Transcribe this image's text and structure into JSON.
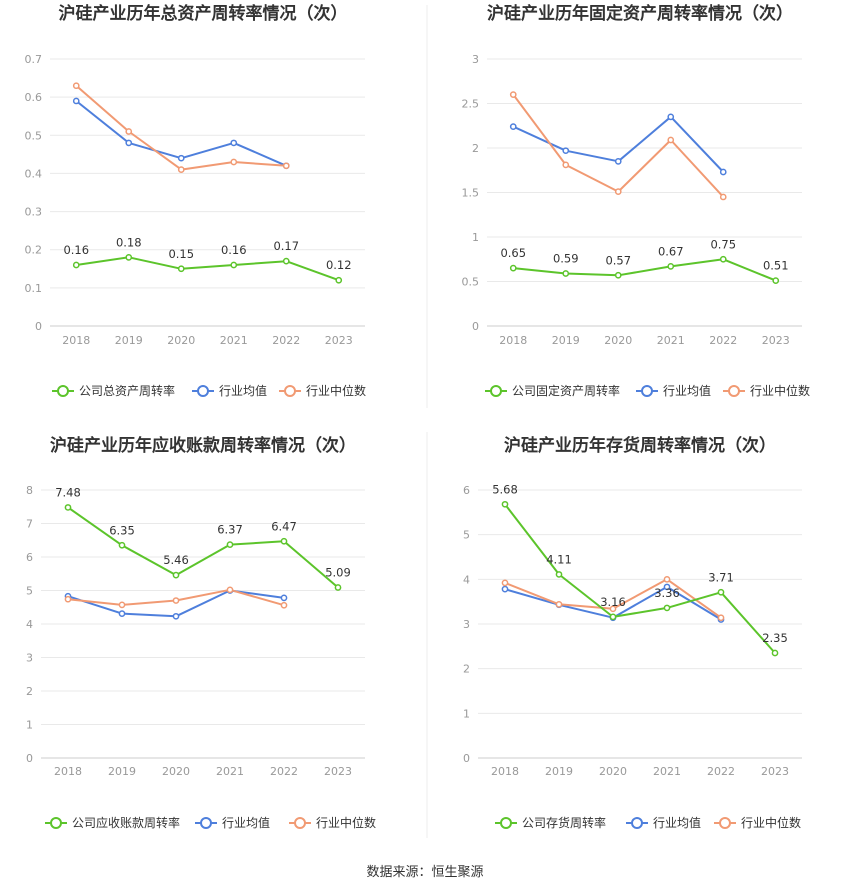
{
  "source": "数据来源：恒生聚源",
  "colors": {
    "company": "#5cc42b",
    "avg": "#4e7fdc",
    "median": "#f19a73"
  },
  "chart_data": [
    {
      "type": "line",
      "title": "沪硅产业历年总资产周转率情况（次）",
      "categories": [
        "2018",
        "2019",
        "2020",
        "2021",
        "2022",
        "2023"
      ],
      "ylim": [
        0,
        0.7
      ],
      "yticks": [
        "0",
        "0.1",
        "0.2",
        "0.3",
        "0.4",
        "0.5",
        "0.6",
        "0.7"
      ],
      "series": [
        {
          "name": "公司总资产周转率",
          "values": [
            0.16,
            0.18,
            0.15,
            0.16,
            0.17,
            0.12
          ],
          "labels": [
            "0.16",
            "0.18",
            "0.15",
            "0.16",
            "0.17",
            "0.12"
          ]
        },
        {
          "name": "行业均值",
          "values": [
            0.59,
            0.48,
            0.44,
            0.48,
            0.42,
            null
          ]
        },
        {
          "name": "行业中位数",
          "values": [
            0.63,
            0.51,
            0.41,
            0.43,
            0.42,
            null
          ]
        }
      ]
    },
    {
      "type": "line",
      "title": "沪硅产业历年固定资产周转率情况（次）",
      "categories": [
        "2018",
        "2019",
        "2020",
        "2021",
        "2022",
        "2023"
      ],
      "ylim": [
        0,
        3
      ],
      "yticks": [
        "0",
        "0.5",
        "1",
        "1.5",
        "2",
        "2.5",
        "3"
      ],
      "series": [
        {
          "name": "公司固定资产周转率",
          "values": [
            0.65,
            0.59,
            0.57,
            0.67,
            0.75,
            0.51
          ],
          "labels": [
            "0.65",
            "0.59",
            "0.57",
            "0.67",
            "0.75",
            "0.51"
          ]
        },
        {
          "name": "行业均值",
          "values": [
            2.24,
            1.97,
            1.85,
            2.35,
            1.73,
            null
          ]
        },
        {
          "name": "行业中位数",
          "values": [
            2.6,
            1.81,
            1.51,
            2.09,
            1.45,
            null
          ]
        }
      ]
    },
    {
      "type": "line",
      "title": "沪硅产业历年应收账款周转率情况（次）",
      "categories": [
        "2018",
        "2019",
        "2020",
        "2021",
        "2022",
        "2023"
      ],
      "ylim": [
        0,
        8
      ],
      "yticks": [
        "0",
        "1",
        "2",
        "3",
        "4",
        "5",
        "6",
        "7",
        "8"
      ],
      "series": [
        {
          "name": "公司应收账款周转率",
          "values": [
            7.48,
            6.35,
            5.46,
            6.37,
            6.47,
            5.09
          ],
          "labels": [
            "7.48",
            "6.35",
            "5.46",
            "6.37",
            "6.47",
            "5.09"
          ]
        },
        {
          "name": "行业均值",
          "values": [
            4.83,
            4.31,
            4.23,
            5.0,
            4.78,
            null
          ]
        },
        {
          "name": "行业中位数",
          "values": [
            4.74,
            4.57,
            4.7,
            5.02,
            4.56,
            null
          ]
        }
      ]
    },
    {
      "type": "line",
      "title": "沪硅产业历年存货周转率情况（次）",
      "categories": [
        "2018",
        "2019",
        "2020",
        "2021",
        "2022",
        "2023"
      ],
      "ylim": [
        0,
        6
      ],
      "yticks": [
        "0",
        "1",
        "2",
        "3",
        "4",
        "5",
        "6"
      ],
      "series": [
        {
          "name": "公司存货周转率",
          "values": [
            5.68,
            4.11,
            3.16,
            3.36,
            3.71,
            2.35
          ],
          "labels": [
            "5.68",
            "4.11",
            "3.16",
            "3.36",
            "3.71",
            "2.35"
          ]
        },
        {
          "name": "行业均值",
          "values": [
            3.78,
            3.43,
            3.14,
            3.83,
            3.1,
            null
          ]
        },
        {
          "name": "行业中位数",
          "values": [
            3.92,
            3.44,
            3.34,
            4.0,
            3.14,
            null
          ]
        }
      ]
    }
  ]
}
